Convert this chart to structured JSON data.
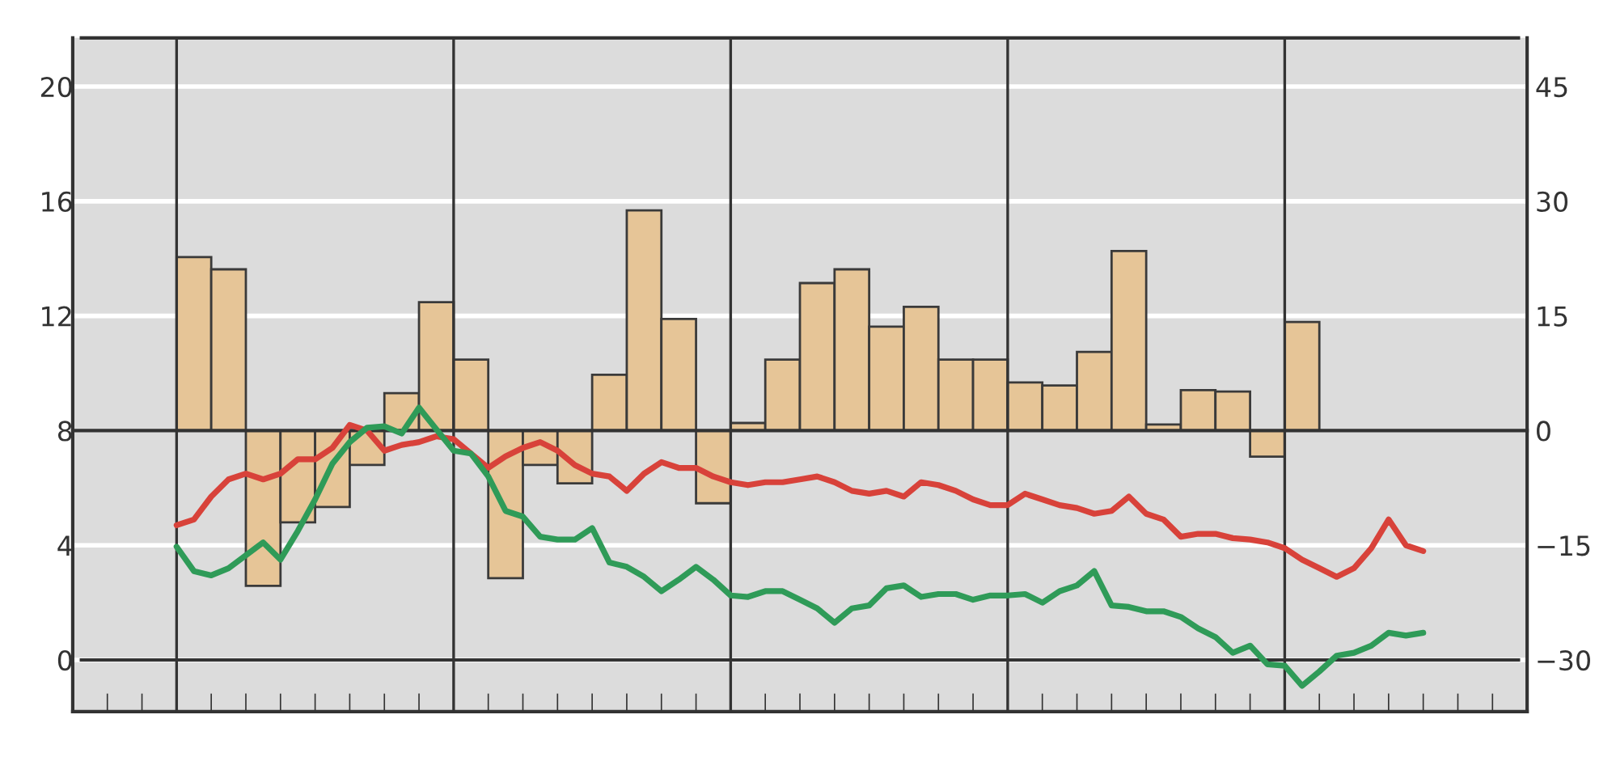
{
  "chart_data": [
    {
      "type": "bar",
      "categories": [
        null,
        null,
        null,
        null,
        null,
        null,
        null,
        null,
        null,
        null,
        null,
        null,
        null,
        null,
        null,
        null,
        null,
        null,
        null,
        null,
        null,
        null,
        null,
        null,
        null,
        null,
        null,
        null,
        null,
        null,
        null,
        null,
        null,
        null,
        null,
        null,
        null,
        null,
        null,
        null,
        null,
        null
      ],
      "values": [
        null,
        null,
        null,
        22.7,
        21.1,
        -20.3,
        -12,
        -10,
        -4.5,
        4.9,
        16.8,
        9.3,
        -19.3,
        -4.5,
        -6.9,
        7.3,
        28.8,
        14.6,
        -9.5,
        1,
        9.3,
        19.3,
        21.1,
        13.6,
        16.2,
        9.3,
        9.3,
        6.3,
        5.9,
        10.3,
        23.5,
        0.8,
        5.3,
        5.1,
        -3.4,
        14.2,
        null,
        null,
        null,
        null,
        null,
        null
      ],
      "color": "#e6c597",
      "ylim": [
        -36.75,
        51.375
      ],
      "yticks": [
        {
          "value": -30,
          "label": "−30"
        },
        {
          "value": -15,
          "label": "−15"
        },
        0,
        15,
        30,
        45
      ],
      "grid": true,
      "tick_labels": "y"
    },
    {
      "type": "line",
      "categories": [
        null,
        null,
        null,
        null,
        null,
        null,
        null,
        null,
        null,
        null,
        null,
        null,
        null,
        null,
        null,
        null,
        null,
        null,
        null,
        null,
        null,
        null,
        null,
        null,
        null,
        null,
        null,
        null,
        null,
        null,
        null,
        null,
        null,
        null,
        null,
        null,
        null,
        null,
        null,
        null,
        null,
        null,
        null,
        null,
        null,
        null,
        null,
        null,
        null,
        null,
        null,
        null,
        null,
        null,
        null,
        null,
        null,
        null,
        null,
        null,
        null,
        null,
        null,
        null,
        null,
        null,
        null,
        null,
        null,
        null,
        null,
        null,
        null,
        null,
        null,
        null,
        null,
        null,
        null,
        null,
        null,
        null,
        null
      ],
      "series": [
        {
          "color": "#d8423a",
          "values": [
            null,
            null,
            null,
            null,
            null,
            4.7,
            4.9,
            5.7,
            6.3,
            6.5,
            6.3,
            6.5,
            7.0,
            7.0,
            7.4,
            8.2,
            8.0,
            7.3,
            7.5,
            7.6,
            7.8,
            7.7,
            7.2,
            6.7,
            7.1,
            7.4,
            7.6,
            7.3,
            6.8,
            6.5,
            6.4,
            5.9,
            6.5,
            6.9,
            6.7,
            6.7,
            6.4,
            6.2,
            6.1,
            6.2,
            6.2,
            6.3,
            6.4,
            6.2,
            5.9,
            5.8,
            5.9,
            5.7,
            6.2,
            6.1,
            5.9,
            5.6,
            5.4,
            5.4,
            5.8,
            5.6,
            5.4,
            5.3,
            5.1,
            5.2,
            5.7,
            5.1,
            4.9,
            4.3,
            4.4,
            4.4,
            4.25,
            4.2,
            4.1,
            3.9,
            3.5,
            3.2,
            2.9,
            3.2,
            3.9,
            4.9,
            4.0,
            3.8,
            null,
            null,
            null,
            null,
            null
          ]
        },
        {
          "color": "#2f9b58",
          "values": [
            null,
            null,
            null,
            null,
            null,
            3.95,
            3.1,
            2.95,
            3.2,
            3.65,
            4.1,
            3.5,
            4.5,
            5.6,
            6.85,
            7.6,
            8.1,
            8.15,
            7.9,
            8.8,
            8.05,
            7.3,
            7.2,
            6.4,
            5.2,
            5.0,
            4.3,
            4.2,
            4.2,
            4.6,
            3.4,
            3.25,
            2.9,
            2.4,
            2.8,
            3.25,
            2.8,
            2.25,
            2.2,
            2.4,
            2.4,
            2.1,
            1.8,
            1.3,
            1.8,
            1.9,
            2.5,
            2.6,
            2.2,
            2.3,
            2.3,
            2.1,
            2.25,
            2.25,
            2.3,
            2.0,
            2.4,
            2.6,
            3.1,
            1.9,
            1.85,
            1.7,
            1.7,
            1.5,
            1.1,
            0.8,
            0.25,
            0.5,
            -0.15,
            -0.2,
            -0.9,
            -0.4,
            0.15,
            0.25,
            0.5,
            0.95,
            0.85,
            0.95,
            null,
            null,
            null,
            null,
            null
          ]
        }
      ],
      "ylim": [
        -1.8,
        21.7
      ],
      "yticks": [
        0,
        4,
        8,
        12,
        16,
        20
      ],
      "tick_labels": "y"
    }
  ]
}
